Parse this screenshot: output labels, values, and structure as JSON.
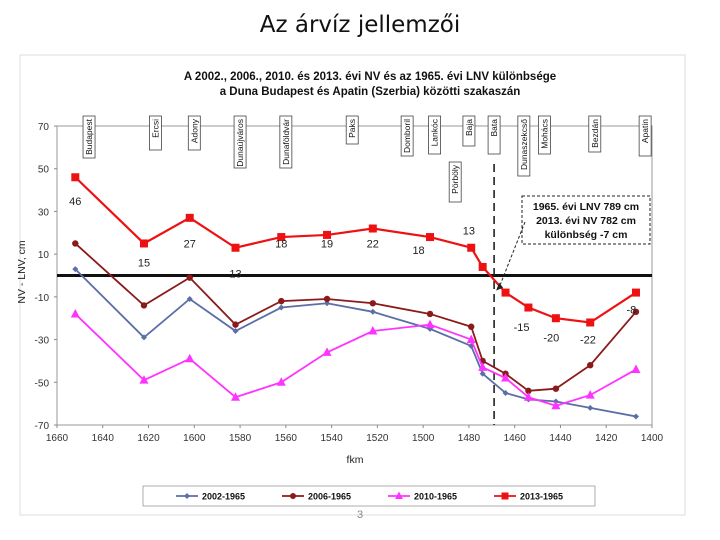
{
  "slide": {
    "title": "Az árvíz jellemzői",
    "page_number": "3"
  },
  "chart_data": {
    "type": "line",
    "title_lines": [
      "A 2002., 2006., 2010. és 2013. évi NV és az 1965. évi LNV különbsége",
      "a Duna Budapest és Apatin (Szerbia) közötti szakaszán"
    ],
    "xlabel": "fkm",
    "ylabel": "NV - LNV, cm",
    "xlim": [
      1660,
      1400
    ],
    "ylim": [
      -70,
      70
    ],
    "x_ticks": [
      "1660",
      "1640",
      "1620",
      "1600",
      "1580",
      "1560",
      "1540",
      "1520",
      "1500",
      "1480",
      "1460",
      "1440",
      "1420",
      "1400"
    ],
    "y_ticks": [
      "70",
      "50",
      "30",
      "10",
      "-10",
      "-30",
      "-50",
      "-70"
    ],
    "grid": false,
    "legend_position": "bottom",
    "reference_line": 0,
    "places": [
      {
        "name": "Budapest",
        "fkm": 1646
      },
      {
        "name": "Ercsi",
        "fkm": 1617
      },
      {
        "name": "Adony",
        "fkm": 1600
      },
      {
        "name": "Dunaújváros",
        "fkm": 1580
      },
      {
        "name": "Dunaföldvár",
        "fkm": 1560
      },
      {
        "name": "Paks",
        "fkm": 1531
      },
      {
        "name": "Domboril",
        "fkm": 1507
      },
      {
        "name": "Lankóc",
        "fkm": 1495
      },
      {
        "name": "Baja",
        "fkm": 1480
      },
      {
        "name": "Bata",
        "fkm": 1469
      },
      {
        "name": "Dunaszekcső",
        "fkm": 1456
      },
      {
        "name": "Mohács",
        "fkm": 1447
      },
      {
        "name": "Bezdán",
        "fkm": 1425
      },
      {
        "name": "Apatin",
        "fkm": 1403
      },
      {
        "name": "Pörböly",
        "fkm": 1486
      }
    ],
    "dashed_marker_fkm": 1469,
    "series": [
      {
        "name": "2002-1965",
        "color": "#5b6fa6",
        "marker": "diamond",
        "x": [
          1652,
          1622,
          1602,
          1582,
          1562,
          1542,
          1522,
          1497,
          1479,
          1474,
          1464,
          1454,
          1442,
          1427,
          1407
        ],
        "y": [
          3,
          -29,
          -11,
          -26,
          -15,
          -13,
          -17,
          -25,
          -33,
          -46,
          -55,
          -58,
          -59,
          -62,
          -66
        ]
      },
      {
        "name": "2006-1965",
        "color": "#8b1a1a",
        "marker": "circle",
        "x": [
          1652,
          1622,
          1602,
          1582,
          1562,
          1542,
          1522,
          1497,
          1479,
          1474,
          1464,
          1454,
          1442,
          1427,
          1407
        ],
        "y": [
          15,
          -14,
          -1,
          -23,
          -12,
          -11,
          -13,
          -18,
          -24,
          -40,
          -46,
          -54,
          -53,
          -42,
          -17
        ]
      },
      {
        "name": "2010-1965",
        "color": "#ff33ff",
        "marker": "triangle",
        "x": [
          1652,
          1622,
          1602,
          1582,
          1562,
          1542,
          1522,
          1497,
          1479,
          1474,
          1464,
          1454,
          1442,
          1427,
          1407
        ],
        "y": [
          -18,
          -49,
          -39,
          -57,
          -50,
          -36,
          -26,
          -23,
          -30,
          -43,
          -48,
          -57,
          -61,
          -56,
          -44
        ]
      },
      {
        "name": "2013-1965",
        "color": "#ee1111",
        "marker": "square",
        "x": [
          1652,
          1622,
          1602,
          1582,
          1562,
          1542,
          1522,
          1497,
          1479,
          1474,
          1464,
          1454,
          1442,
          1427,
          1407
        ],
        "y": [
          46,
          15,
          27,
          13,
          18,
          19,
          22,
          18,
          13,
          4,
          -8,
          -15,
          -20,
          -22,
          -8
        ]
      }
    ],
    "data_labels": [
      {
        "text": "46",
        "x": 1652,
        "y": 35
      },
      {
        "text": "15",
        "x": 1622,
        "y": 6
      },
      {
        "text": "27",
        "x": 1602,
        "y": 15
      },
      {
        "text": "13",
        "x": 1582,
        "y": 1
      },
      {
        "text": "18",
        "x": 1562,
        "y": 15
      },
      {
        "text": "19",
        "x": 1542,
        "y": 15
      },
      {
        "text": "22",
        "x": 1522,
        "y": 15
      },
      {
        "text": "18",
        "x": 1502,
        "y": 12
      },
      {
        "text": "13",
        "x": 1480,
        "y": 21
      },
      {
        "text": "-15",
        "x": 1457,
        "y": -24
      },
      {
        "text": "-20",
        "x": 1444,
        "y": -29
      },
      {
        "text": "-22",
        "x": 1428,
        "y": -30
      },
      {
        "text": "-8",
        "x": 1409,
        "y": -16
      }
    ],
    "annotation": {
      "lines": [
        "1965. évi LNV 789 cm",
        "2013. évi NV 782 cm",
        "különbség  -7 cm"
      ],
      "points_to_fkm": 1469,
      "points_to_value": -8
    }
  }
}
